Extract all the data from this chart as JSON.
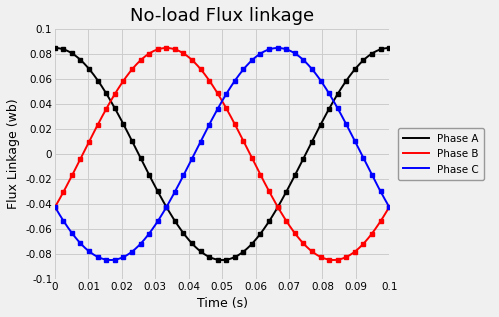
{
  "title": "No-load Flux linkage",
  "xlabel": "Time (s)",
  "ylabel": "Flux Linkage (wb)",
  "xlim": [
    0,
    0.1
  ],
  "ylim": [
    -0.1,
    0.1
  ],
  "xticks": [
    0,
    0.01,
    0.02,
    0.03,
    0.04,
    0.05,
    0.06,
    0.07,
    0.08,
    0.09,
    0.1
  ],
  "yticks": [
    -0.1,
    -0.08,
    -0.06,
    -0.04,
    -0.02,
    0,
    0.02,
    0.04,
    0.06,
    0.08,
    0.1
  ],
  "amplitude": 0.085,
  "frequency": 10,
  "phase_A_phase": 1.5708,
  "phase_B_phase": -0.5236,
  "phase_C_phase": 3.6652,
  "colors": {
    "Phase A": "#000000",
    "Phase B": "#ff0000",
    "Phase C": "#0000ff"
  },
  "legend_labels": [
    "Phase A",
    "Phase B",
    "Phase C"
  ],
  "n_points": 1000,
  "marker_n": 40,
  "marker_style": "s",
  "marker_size": 3.0,
  "linewidth": 1.4,
  "grid_color": "#cccccc",
  "bg_color": "#f0f0f0",
  "title_fontsize": 13,
  "tick_fontsize": 7.5,
  "label_fontsize": 9,
  "legend_fontsize": 7.5,
  "figwidth": 4.99,
  "figheight": 3.17
}
